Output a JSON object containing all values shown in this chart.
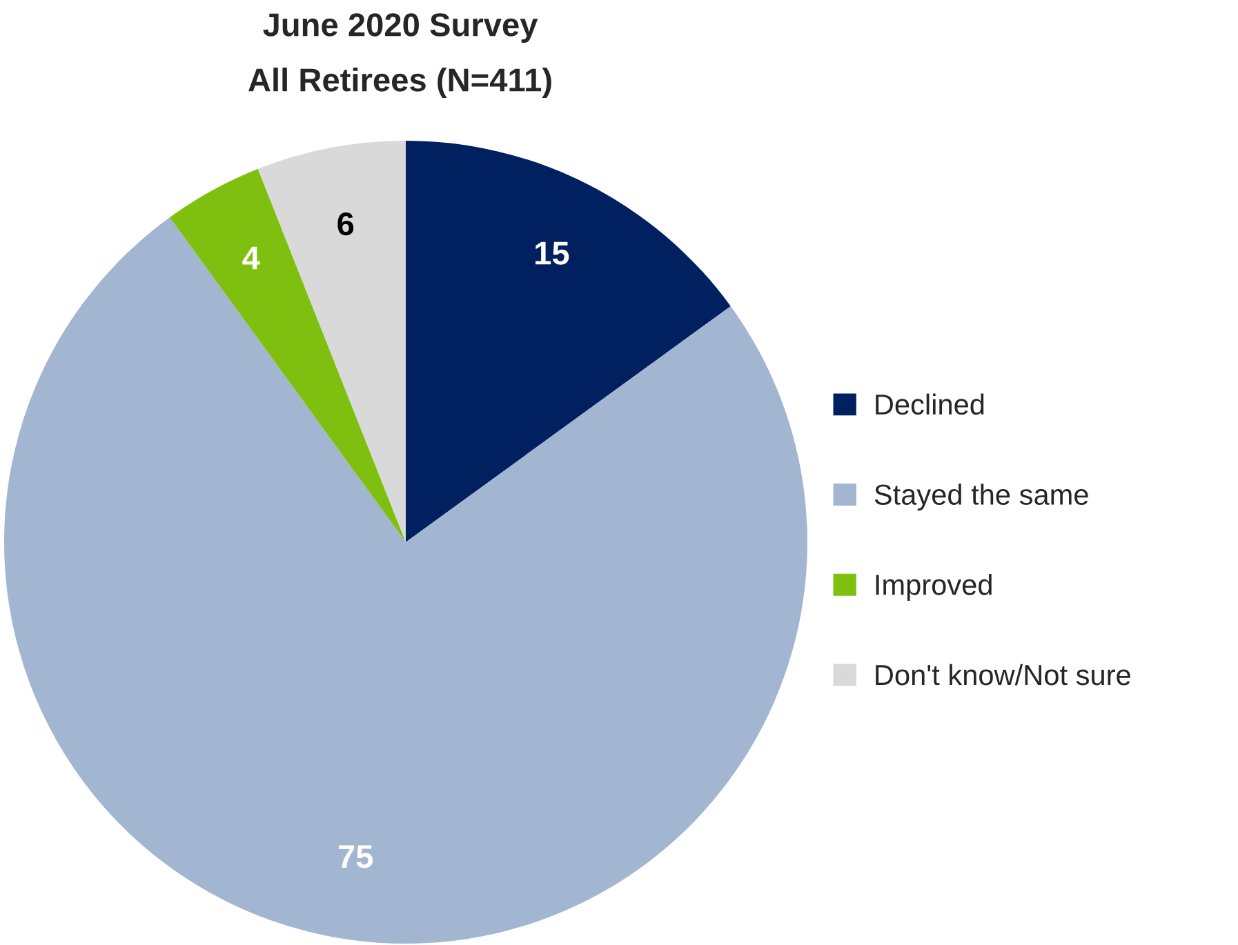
{
  "chart_data": {
    "type": "pie",
    "title": "June 2020 Survey",
    "subtitle": "All Retirees (N=411)",
    "categories": [
      "Declined",
      "Stayed the same",
      "Improved",
      "Don't know/Not sure"
    ],
    "values": [
      15,
      75,
      4,
      6
    ],
    "colors": [
      "#002060",
      "#a2b5d1",
      "#7fbf10",
      "#d9d9d9"
    ],
    "data_labels": true,
    "legend": "right"
  }
}
